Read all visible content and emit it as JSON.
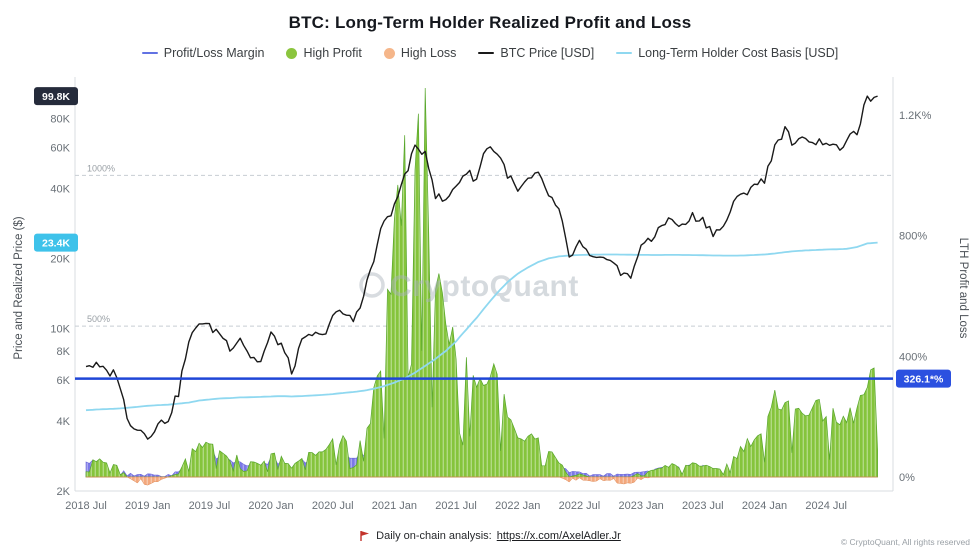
{
  "title": "BTC: Long-Term Holder Realized Profit and Loss",
  "legend": {
    "items": [
      {
        "label": "Profit/Loss Margin",
        "type": "line",
        "color": "#6272e3"
      },
      {
        "label": "High Profit",
        "type": "dot",
        "color": "#8bc53e"
      },
      {
        "label": "High Loss",
        "type": "dot",
        "color": "#f5b68a"
      },
      {
        "label": "BTC Price [USD]",
        "type": "line",
        "color": "#1a1a1a"
      },
      {
        "label": "Long-Term Holder Cost Basis [USD]",
        "type": "line",
        "color": "#8fd8f0"
      }
    ]
  },
  "left_axis": {
    "title": "Price and Realized Price ($)",
    "ticks": [
      {
        "label": "2K",
        "value": 2000
      },
      {
        "label": "4K",
        "value": 4000
      },
      {
        "label": "6K",
        "value": 6000
      },
      {
        "label": "8K",
        "value": 8000
      },
      {
        "label": "10K",
        "value": 10000
      },
      {
        "label": "20K",
        "value": 20000
      },
      {
        "label": "40K",
        "value": 40000
      },
      {
        "label": "60K",
        "value": 60000
      },
      {
        "label": "80K",
        "value": 80000
      }
    ]
  },
  "right_axis": {
    "title": "LTH Profit and Loss",
    "ticks": [
      {
        "label": "0%",
        "value": 0
      },
      {
        "label": "400%",
        "value": 400
      },
      {
        "label": "800%",
        "value": 800
      },
      {
        "label": "1.2K%",
        "value": 1200
      }
    ]
  },
  "x_axis": {
    "ticks": [
      {
        "label": "2018 Jul",
        "index": 0
      },
      {
        "label": "2019 Jan",
        "index": 6
      },
      {
        "label": "2019 Jul",
        "index": 12
      },
      {
        "label": "2020 Jan",
        "index": 18
      },
      {
        "label": "2020 Jul",
        "index": 24
      },
      {
        "label": "2021 Jan",
        "index": 30
      },
      {
        "label": "2021 Jul",
        "index": 36
      },
      {
        "label": "2022 Jan",
        "index": 42
      },
      {
        "label": "2022 Jul",
        "index": 48
      },
      {
        "label": "2023 Jan",
        "index": 54
      },
      {
        "label": "2023 Jul",
        "index": 60
      },
      {
        "label": "2024 Jan",
        "index": 66
      },
      {
        "label": "2024 Jul",
        "index": 72
      }
    ]
  },
  "badges": {
    "price_last": {
      "label": "99.8K",
      "value": 99800,
      "color": "#252b3b"
    },
    "cost_basis_last": {
      "label": "23.4K",
      "value": 23400,
      "color": "#3ec2ea"
    },
    "margin_current": {
      "label": "326.1*%",
      "value": 326.1,
      "color": "#2b50e0"
    }
  },
  "annotations": {
    "gridlines": [
      {
        "label": "1000%",
        "value": 1000
      },
      {
        "label": "500%",
        "value": 500
      }
    ],
    "reference_line": {
      "value": 326.1,
      "color": "#1f46d7"
    }
  },
  "watermark": "CryptoQuant",
  "footer": {
    "note_prefix": "Daily on-chain analysis:",
    "link_text": "https://x.com/AxelAdler.Jr",
    "copyright": "© CryptoQuant, All rights reserved"
  },
  "chart_data": {
    "type": "area",
    "title": "BTC: Long-Term Holder Realized Profit and Loss",
    "x_start": "2018-07",
    "x_end": "2024-12",
    "x_frequency": "monthly",
    "left_axis_scale": "log",
    "left_ylim": [
      2000,
      110000
    ],
    "right_ylim_pct": [
      0,
      1300
    ],
    "grid": "dashed horizontal at 500% and 1000%",
    "legend_position": "top",
    "series": [
      {
        "name": "BTC Price [USD]",
        "type": "line",
        "axis": "left",
        "color": "#1a1a1a",
        "values": [
          7000,
          6900,
          6500,
          6400,
          4050,
          3750,
          3450,
          3850,
          4100,
          5300,
          8550,
          10800,
          10100,
          9600,
          8300,
          9150,
          7550,
          7200,
          9350,
          8550,
          6450,
          8650,
          9450,
          9150,
          11350,
          11650,
          10800,
          13800,
          19700,
          29000,
          33100,
          45200,
          58800,
          57750,
          37300,
          35000,
          41500,
          47150,
          43800,
          61300,
          57000,
          46200,
          38500,
          43200,
          45550,
          37650,
          31800,
          19900,
          23300,
          20050,
          19400,
          20500,
          17150,
          16550,
          23100,
          23500,
          28500,
          29250,
          27200,
          30450,
          29250,
          26000,
          26950,
          34650,
          37700,
          42250,
          42550,
          61150,
          71300,
          60650,
          67500,
          62700,
          64600,
          58950,
          63350,
          70200,
          96400,
          99800
        ]
      },
      {
        "name": "Long-Term Holder Cost Basis [USD]",
        "type": "line",
        "axis": "left",
        "color": "#8fd8f0",
        "values": [
          4450,
          4480,
          4500,
          4520,
          4560,
          4600,
          4650,
          4680,
          4700,
          4750,
          4800,
          4900,
          4950,
          5000,
          5020,
          5050,
          5060,
          5080,
          5100,
          5120,
          5100,
          5120,
          5150,
          5180,
          5220,
          5280,
          5330,
          5400,
          5500,
          5650,
          5850,
          6100,
          6450,
          6900,
          7400,
          8000,
          8800,
          9900,
          11100,
          12600,
          14200,
          15800,
          17200,
          18300,
          19300,
          20000,
          20400,
          20600,
          20700,
          20750,
          20780,
          20800,
          20780,
          20750,
          20720,
          20700,
          20700,
          20720,
          20700,
          20680,
          20650,
          20600,
          20580,
          20560,
          20600,
          20700,
          20800,
          21000,
          21300,
          21500,
          21650,
          21750,
          21850,
          21900,
          22000,
          22400,
          23200,
          23400
        ]
      },
      {
        "name": "High Profit",
        "type": "area",
        "axis": "right",
        "color": "#85c43c",
        "values": [
          74,
          56,
          47,
          39,
          0,
          0,
          0,
          0,
          0,
          12,
          78,
          120,
          104,
          92,
          65,
          81,
          49,
          42,
          83,
          67,
          26,
          69,
          83,
          77,
          117,
          121,
          103,
          156,
          258,
          413,
          800,
          1100,
          1290,
          1200,
          680,
          450,
          430,
          450,
          330,
          380,
          330,
          220,
          130,
          150,
          160,
          100,
          55,
          0,
          10,
          0,
          0,
          0,
          0,
          0,
          15,
          20,
          35,
          40,
          30,
          47,
          40,
          25,
          30,
          65,
          105,
          140,
          150,
          250,
          290,
          220,
          250,
          220,
          230,
          180,
          195,
          230,
          300,
          330
        ]
      },
      {
        "name": "Profit/Loss Margin (low band)",
        "type": "area",
        "axis": "right",
        "color": "#7b78e8",
        "values": [
          60,
          45,
          35,
          25,
          15,
          8,
          10,
          6,
          8,
          20,
          50,
          70,
          80,
          70,
          55,
          60,
          40,
          35,
          60,
          50,
          20,
          55,
          65,
          60,
          80,
          85,
          75,
          90,
          0,
          0,
          0,
          0,
          0,
          0,
          0,
          0,
          0,
          0,
          0,
          0,
          0,
          0,
          0,
          0,
          0,
          0,
          40,
          18,
          15,
          10,
          8,
          12,
          8,
          10,
          20,
          25,
          30,
          35,
          28,
          40,
          35,
          20,
          0,
          0,
          0,
          0,
          0,
          0,
          0,
          0,
          0,
          0,
          0,
          0,
          0,
          0,
          0,
          0
        ]
      },
      {
        "name": "High Loss",
        "type": "area",
        "axis": "right",
        "color": "#f3a87d",
        "values": [
          0,
          0,
          0,
          0,
          0,
          -18,
          -25,
          -15,
          0,
          0,
          0,
          0,
          0,
          0,
          0,
          0,
          0,
          0,
          0,
          0,
          0,
          0,
          0,
          0,
          0,
          0,
          0,
          0,
          0,
          0,
          0,
          0,
          0,
          0,
          0,
          0,
          0,
          0,
          0,
          0,
          0,
          0,
          0,
          0,
          0,
          0,
          0,
          -15,
          -8,
          -12,
          -18,
          -10,
          -25,
          -20,
          -8,
          0,
          0,
          0,
          0,
          0,
          0,
          0,
          0,
          0,
          0,
          0,
          0,
          0,
          0,
          0,
          0,
          0,
          0,
          0,
          0,
          0,
          0,
          0
        ]
      }
    ],
    "profit_loss_margin_current_pct": 326.1,
    "btc_price_last": 99800,
    "lth_cost_basis_last": 23400
  }
}
